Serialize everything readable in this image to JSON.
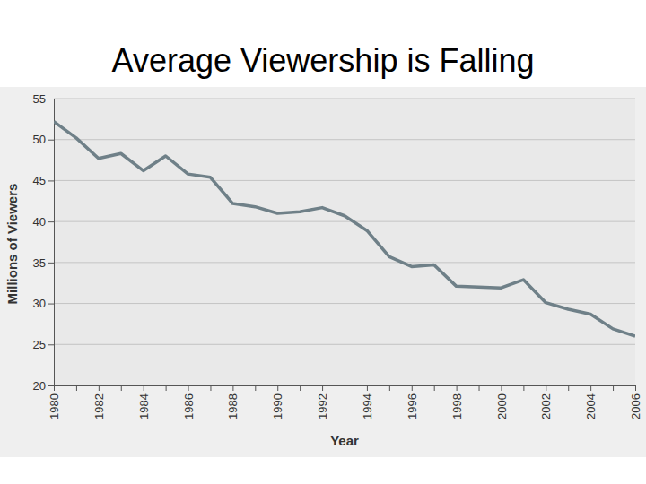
{
  "chart_data": {
    "type": "line",
    "title": "Average Viewership is Falling",
    "xlabel": "Year",
    "ylabel": "Millions of Viewers",
    "categories": [
      "1980",
      null,
      "1982",
      null,
      "1984",
      null,
      "1986",
      null,
      "1988",
      null,
      "1990",
      null,
      "1992",
      null,
      "1994",
      null,
      "1996",
      null,
      "1998",
      null,
      "2000",
      null,
      "2002",
      null,
      "2004",
      null,
      "2006"
    ],
    "values": [
      52.2,
      50.2,
      47.7,
      48.3,
      46.2,
      48.0,
      45.8,
      45.4,
      42.2,
      41.8,
      41.0,
      41.2,
      41.7,
      40.7,
      38.9,
      35.7,
      34.5,
      34.7,
      32.1,
      32.0,
      31.9,
      32.9,
      30.1,
      29.3,
      28.7,
      26.9,
      26.0
    ],
    "color": "#6f8088",
    "ylim": [
      20,
      55
    ],
    "yticks": [
      20,
      25,
      30,
      35,
      40,
      45,
      50,
      55
    ],
    "grid": true
  }
}
